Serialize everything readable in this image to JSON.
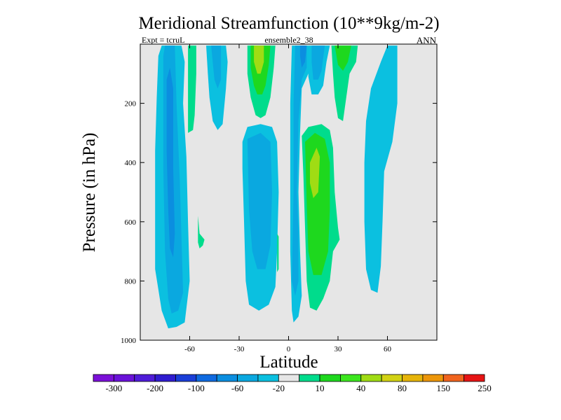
{
  "chart_data": {
    "type": "contour",
    "title": "Meridional Streamfunction (10**9kg/m-2)",
    "subtitle_left": "Expt = tcruL",
    "subtitle_center": "ensemble2_38",
    "subtitle_right": "ANN",
    "xlabel": "Latitude",
    "ylabel": "Pressure (in hPa)",
    "xlim": [
      -90,
      90
    ],
    "ylim": [
      1000,
      0
    ],
    "y_inverted": true,
    "background_color": "#e6e6e6",
    "x_ticks": [
      {
        "value": -60,
        "label": "-60"
      },
      {
        "value": -30,
        "label": "-30"
      },
      {
        "value": 0,
        "label": "0"
      },
      {
        "value": 30,
        "label": "30"
      },
      {
        "value": 60,
        "label": "60"
      }
    ],
    "y_ticks": [
      {
        "value": 200,
        "label": "200"
      },
      {
        "value": 400,
        "label": "400"
      },
      {
        "value": 600,
        "label": "600"
      },
      {
        "value": 800,
        "label": "800"
      },
      {
        "value": 1000,
        "label": "1000"
      }
    ],
    "colorbar": {
      "colors": [
        "#7b10d8",
        "#6a12d9",
        "#4f1cd9",
        "#2f1cd0",
        "#1a3ed8",
        "#0f6ae0",
        "#0b8ee0",
        "#0aa8e0",
        "#0bc0e0",
        "#e6e6e6",
        "#00dc8c",
        "#1ed81e",
        "#3ce61e",
        "#a0dc14",
        "#d2d214",
        "#e6b40a",
        "#ec960a",
        "#f0641e",
        "#e61414"
      ],
      "labels": [
        "-300",
        "-200",
        "-100",
        "-60",
        "-20",
        "10",
        "40",
        "80",
        "150",
        "250"
      ]
    },
    "contour_regions": [
      {
        "name": "sh-hadley-outer",
        "level": "-20",
        "color": "#0bc0e0",
        "points": [
          [
            -81,
            360
          ],
          [
            -80,
            180
          ],
          [
            -79,
            40
          ],
          [
            -77,
            5
          ],
          [
            -65,
            5
          ],
          [
            -63,
            60
          ],
          [
            -64,
            200
          ],
          [
            -62,
            380
          ],
          [
            -61,
            600
          ],
          [
            -60,
            800
          ],
          [
            -63,
            940
          ],
          [
            -68,
            955
          ],
          [
            -73,
            960
          ],
          [
            -77,
            900
          ],
          [
            -81,
            760
          ]
        ]
      },
      {
        "name": "sh-hadley-mid",
        "level": "-60",
        "color": "#0aa8e0",
        "points": [
          [
            -76,
            40
          ],
          [
            -75,
            5
          ],
          [
            -69,
            5
          ],
          [
            -68,
            200
          ],
          [
            -66,
            460
          ],
          [
            -65,
            660
          ],
          [
            -64,
            840
          ],
          [
            -67,
            900
          ],
          [
            -71,
            910
          ],
          [
            -73,
            860
          ],
          [
            -75,
            700
          ],
          [
            -76,
            420
          ]
        ]
      },
      {
        "name": "sh-hadley-core",
        "level": "-100",
        "color": "#0b8ee0",
        "points": [
          [
            -74,
            120
          ],
          [
            -72,
            80
          ],
          [
            -70,
            150
          ],
          [
            -70,
            420
          ],
          [
            -69,
            640
          ],
          [
            -70,
            720
          ],
          [
            -72,
            690
          ],
          [
            -73,
            560
          ],
          [
            -74,
            360
          ]
        ]
      },
      {
        "name": "sh-ferrel-upper",
        "level": "40",
        "color": "#00dc8c",
        "points": [
          [
            -61,
            5
          ],
          [
            -56,
            5
          ],
          [
            -56,
            100
          ],
          [
            -57,
            240
          ],
          [
            -58,
            290
          ],
          [
            -61,
            300
          ]
        ]
      },
      {
        "name": "sh-ferrel-blob",
        "level": "40",
        "color": "#00dc8c",
        "points": [
          [
            -55,
            580
          ],
          [
            -54,
            640
          ],
          [
            -51,
            660
          ],
          [
            -52,
            680
          ],
          [
            -54,
            690
          ],
          [
            -55,
            670
          ]
        ]
      },
      {
        "name": "sh-upper-cell-a",
        "level": "-20",
        "color": "#0bc0e0",
        "points": [
          [
            -50,
            5
          ],
          [
            -38,
            5
          ],
          [
            -37,
            60
          ],
          [
            -38,
            150
          ],
          [
            -40,
            270
          ],
          [
            -43,
            290
          ],
          [
            -46,
            260
          ],
          [
            -48,
            180
          ],
          [
            -49,
            100
          ]
        ]
      },
      {
        "name": "sh-upper-cell-b",
        "level": "-60",
        "color": "#0aa8e0",
        "points": [
          [
            -47,
            5
          ],
          [
            -41,
            5
          ],
          [
            -41,
            120
          ],
          [
            -43,
            150
          ],
          [
            -45,
            120
          ]
        ]
      },
      {
        "name": "trop-upper-pos-outer",
        "level": "40",
        "color": "#00dc8c",
        "points": [
          [
            -25,
            5
          ],
          [
            -8,
            5
          ],
          [
            -9,
            80
          ],
          [
            -11,
            180
          ],
          [
            -14,
            240
          ],
          [
            -17,
            250
          ],
          [
            -20,
            240
          ],
          [
            -23,
            180
          ],
          [
            -25,
            100
          ]
        ]
      },
      {
        "name": "trop-upper-pos-mid",
        "level": "80",
        "color": "#1ed81e",
        "points": [
          [
            -23,
            5
          ],
          [
            -11,
            5
          ],
          [
            -12,
            70
          ],
          [
            -14,
            140
          ],
          [
            -16,
            170
          ],
          [
            -19,
            170
          ],
          [
            -21,
            140
          ],
          [
            -23,
            80
          ]
        ]
      },
      {
        "name": "trop-upper-pos-core",
        "level": "150",
        "color": "#a0dc14",
        "points": [
          [
            -21,
            5
          ],
          [
            -15,
            5
          ],
          [
            -15,
            60
          ],
          [
            -17,
            100
          ],
          [
            -19,
            100
          ],
          [
            -21,
            60
          ]
        ]
      },
      {
        "name": "sh-lower-cell-outer",
        "level": "-20",
        "color": "#0bc0e0",
        "points": [
          [
            -28,
            330
          ],
          [
            -25,
            280
          ],
          [
            -17,
            270
          ],
          [
            -10,
            280
          ],
          [
            -7,
            330
          ],
          [
            -6,
            500
          ],
          [
            -7,
            700
          ],
          [
            -8,
            820
          ],
          [
            -12,
            880
          ],
          [
            -18,
            900
          ],
          [
            -24,
            880
          ],
          [
            -26,
            800
          ],
          [
            -27,
            600
          ],
          [
            -28,
            420
          ]
        ]
      },
      {
        "name": "sh-lower-cell-mid",
        "level": "-60",
        "color": "#0aa8e0",
        "points": [
          [
            -25,
            320
          ],
          [
            -17,
            300
          ],
          [
            -11,
            330
          ],
          [
            -10,
            500
          ],
          [
            -11,
            680
          ],
          [
            -14,
            760
          ],
          [
            -19,
            760
          ],
          [
            -22,
            700
          ],
          [
            -24,
            560
          ]
        ]
      },
      {
        "name": "eq-small-blob",
        "level": "40",
        "color": "#00dc8c",
        "points": [
          [
            -7,
            640
          ],
          [
            -6,
            650
          ],
          [
            -6,
            760
          ],
          [
            -7,
            770
          ],
          [
            -7,
            700
          ]
        ]
      },
      {
        "name": "eq-column-outer",
        "level": "-20",
        "color": "#0bc0e0",
        "points": [
          [
            2,
            5
          ],
          [
            12,
            5
          ],
          [
            14,
            60
          ],
          [
            12,
            100
          ],
          [
            8,
            150
          ],
          [
            7,
            300
          ],
          [
            6,
            500
          ],
          [
            7,
            700
          ],
          [
            8,
            850
          ],
          [
            6,
            920
          ],
          [
            3,
            940
          ],
          [
            2,
            900
          ],
          [
            1,
            700
          ],
          [
            1,
            400
          ],
          [
            1,
            200
          ]
        ]
      },
      {
        "name": "eq-column-mid",
        "level": "-60",
        "color": "#0aa8e0",
        "points": [
          [
            4,
            5
          ],
          [
            11,
            5
          ],
          [
            11,
            80
          ],
          [
            8,
            120
          ],
          [
            6,
            260
          ],
          [
            5,
            500
          ],
          [
            6,
            640
          ],
          [
            6,
            800
          ],
          [
            4,
            850
          ],
          [
            2,
            800
          ],
          [
            3,
            500
          ],
          [
            3,
            200
          ]
        ]
      },
      {
        "name": "eq-column-core",
        "level": "-100",
        "color": "#0b8ee0",
        "points": [
          [
            7,
            5
          ],
          [
            11,
            5
          ],
          [
            10,
            60
          ],
          [
            8,
            80
          ],
          [
            7,
            40
          ]
        ]
      },
      {
        "name": "eq-upper-right",
        "level": "-20",
        "color": "#0bc0e0",
        "points": [
          [
            12,
            5
          ],
          [
            25,
            5
          ],
          [
            23,
            60
          ],
          [
            22,
            100
          ],
          [
            21,
            140
          ],
          [
            18,
            170
          ],
          [
            14,
            170
          ],
          [
            12,
            110
          ]
        ]
      },
      {
        "name": "eq-upper-right-mid",
        "level": "-60",
        "color": "#0aa8e0",
        "points": [
          [
            14,
            5
          ],
          [
            22,
            5
          ],
          [
            20,
            90
          ],
          [
            18,
            120
          ],
          [
            15,
            120
          ],
          [
            14,
            60
          ]
        ]
      },
      {
        "name": "nh-hadley-outer",
        "level": "40",
        "color": "#00dc8c",
        "points": [
          [
            8,
            310
          ],
          [
            12,
            280
          ],
          [
            20,
            270
          ],
          [
            25,
            290
          ],
          [
            27,
            350
          ],
          [
            28,
            500
          ],
          [
            30,
            620
          ],
          [
            31,
            660
          ],
          [
            27,
            700
          ],
          [
            25,
            800
          ],
          [
            21,
            860
          ],
          [
            17,
            900
          ],
          [
            13,
            890
          ],
          [
            11,
            800
          ],
          [
            10,
            620
          ],
          [
            9,
            440
          ]
        ]
      },
      {
        "name": "nh-hadley-mid",
        "level": "80",
        "color": "#1ed81e",
        "points": [
          [
            10,
            330
          ],
          [
            16,
            300
          ],
          [
            22,
            320
          ],
          [
            25,
            400
          ],
          [
            25,
            560
          ],
          [
            24,
            700
          ],
          [
            20,
            780
          ],
          [
            15,
            780
          ],
          [
            12,
            700
          ],
          [
            11,
            540
          ]
        ]
      },
      {
        "name": "nh-hadley-core",
        "level": "150",
        "color": "#a0dc14",
        "points": [
          [
            13,
            400
          ],
          [
            17,
            350
          ],
          [
            19,
            380
          ],
          [
            18,
            500
          ],
          [
            15,
            520
          ],
          [
            13,
            470
          ]
        ]
      },
      {
        "name": "nh-upper-pos-outer",
        "level": "40",
        "color": "#00dc8c",
        "points": [
          [
            26,
            5
          ],
          [
            42,
            5
          ],
          [
            41,
            60
          ],
          [
            37,
            100
          ],
          [
            35,
            180
          ],
          [
            33,
            260
          ],
          [
            30,
            250
          ],
          [
            28,
            180
          ],
          [
            27,
            100
          ]
        ]
      },
      {
        "name": "nh-upper-pos-mid",
        "level": "80",
        "color": "#1ed81e",
        "points": [
          [
            28,
            5
          ],
          [
            38,
            5
          ],
          [
            36,
            60
          ],
          [
            33,
            90
          ],
          [
            30,
            70
          ]
        ]
      },
      {
        "name": "nh-ferrel-outer",
        "level": "-20",
        "color": "#0bc0e0",
        "points": [
          [
            46,
            400
          ],
          [
            47,
            260
          ],
          [
            50,
            150
          ],
          [
            56,
            60
          ],
          [
            60,
            5
          ],
          [
            66,
            5
          ],
          [
            66,
            200
          ],
          [
            63,
            330
          ],
          [
            58,
            430
          ],
          [
            57,
            600
          ],
          [
            56,
            750
          ],
          [
            54,
            840
          ],
          [
            50,
            830
          ],
          [
            47,
            760
          ],
          [
            46,
            600
          ]
        ]
      }
    ]
  }
}
